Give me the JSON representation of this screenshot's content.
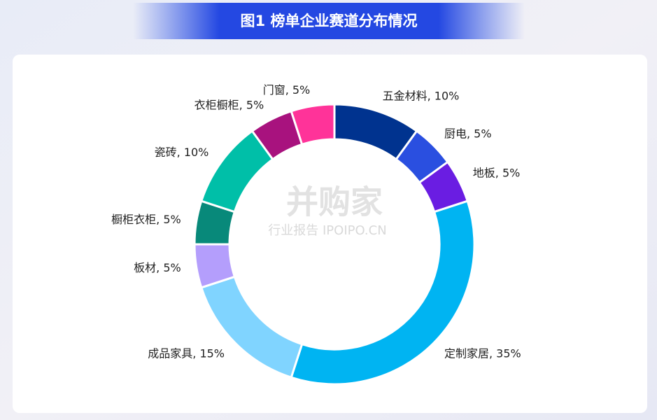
{
  "chart_data": {
    "type": "donut",
    "title": "图1 榜单企业赛道分布情况",
    "values": [
      10,
      5,
      5,
      35,
      15,
      5,
      5,
      10,
      5,
      5
    ],
    "value_labels": [
      "五金材料, 10%",
      "厨电, 5%",
      "地板, 5%",
      "定制家居, 35%",
      "成品家具, 15%",
      "板材, 5%",
      "橱柜衣柜, 5%",
      "瓷砖, 10%",
      "衣柜橱柜, 5%",
      "门窗, 5%"
    ],
    "colors": [
      "#00338f",
      "#2a4fe0",
      "#6a1de2",
      "#00b4f2",
      "#80d4ff",
      "#b49efc",
      "#08897a",
      "#00bfa8",
      "#a8127e",
      "#ff3399"
    ],
    "watermark": {
      "brand": "并购家",
      "tagline": "行业报告 IPOIPO.CN"
    }
  }
}
